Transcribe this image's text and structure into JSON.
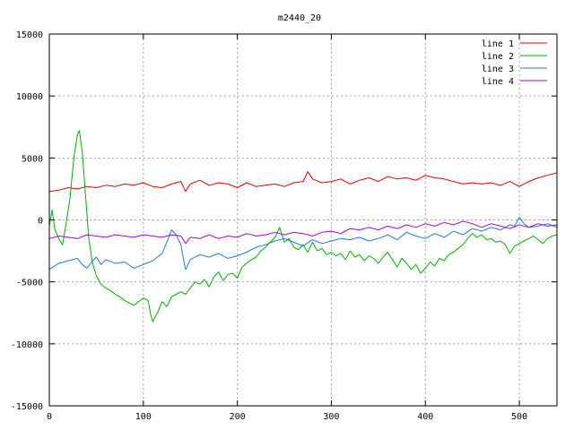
{
  "chart_data": {
    "type": "line",
    "title": "m2440_20",
    "xlabel": "",
    "ylabel": "",
    "xlim": [
      0,
      540
    ],
    "ylim": [
      -15000,
      15000
    ],
    "x_ticks": [
      0,
      100,
      200,
      300,
      400,
      500
    ],
    "y_ticks": [
      -15000,
      -10000,
      -5000,
      0,
      5000,
      10000,
      15000
    ],
    "grid": true,
    "legend_position": "top-right",
    "series": [
      {
        "name": "line 1",
        "color": "#e00000",
        "points": [
          [
            0,
            2300
          ],
          [
            10,
            2400
          ],
          [
            20,
            2600
          ],
          [
            30,
            2500
          ],
          [
            40,
            2700
          ],
          [
            50,
            2600
          ],
          [
            60,
            2800
          ],
          [
            70,
            2700
          ],
          [
            80,
            2900
          ],
          [
            90,
            2800
          ],
          [
            100,
            3000
          ],
          [
            110,
            2700
          ],
          [
            120,
            2600
          ],
          [
            130,
            2900
          ],
          [
            140,
            3100
          ],
          [
            145,
            2300
          ],
          [
            150,
            2900
          ],
          [
            160,
            3200
          ],
          [
            170,
            2800
          ],
          [
            180,
            3000
          ],
          [
            190,
            2900
          ],
          [
            200,
            2600
          ],
          [
            210,
            3000
          ],
          [
            220,
            2700
          ],
          [
            230,
            2800
          ],
          [
            240,
            2900
          ],
          [
            250,
            2700
          ],
          [
            260,
            3000
          ],
          [
            270,
            3100
          ],
          [
            275,
            3900
          ],
          [
            280,
            3300
          ],
          [
            290,
            3000
          ],
          [
            300,
            3100
          ],
          [
            310,
            3300
          ],
          [
            320,
            2900
          ],
          [
            330,
            3200
          ],
          [
            340,
            3400
          ],
          [
            350,
            3100
          ],
          [
            360,
            3500
          ],
          [
            370,
            3300
          ],
          [
            380,
            3400
          ],
          [
            390,
            3200
          ],
          [
            400,
            3600
          ],
          [
            410,
            3400
          ],
          [
            420,
            3300
          ],
          [
            430,
            3100
          ],
          [
            440,
            2900
          ],
          [
            450,
            3000
          ],
          [
            460,
            2900
          ],
          [
            470,
            3000
          ],
          [
            480,
            2800
          ],
          [
            490,
            3100
          ],
          [
            500,
            2700
          ],
          [
            510,
            3100
          ],
          [
            520,
            3400
          ],
          [
            530,
            3600
          ],
          [
            540,
            3800
          ]
        ]
      },
      {
        "name": "line 2",
        "color": "#00b000",
        "points": [
          [
            0,
            -500
          ],
          [
            3,
            800
          ],
          [
            6,
            -800
          ],
          [
            10,
            -1500
          ],
          [
            14,
            -2000
          ],
          [
            18,
            -200
          ],
          [
            22,
            1800
          ],
          [
            26,
            5000
          ],
          [
            30,
            6900
          ],
          [
            32,
            7200
          ],
          [
            35,
            5500
          ],
          [
            38,
            2500
          ],
          [
            42,
            -1500
          ],
          [
            46,
            -3500
          ],
          [
            50,
            -4500
          ],
          [
            55,
            -5200
          ],
          [
            60,
            -5500
          ],
          [
            65,
            -5700
          ],
          [
            70,
            -6000
          ],
          [
            75,
            -6200
          ],
          [
            80,
            -6500
          ],
          [
            85,
            -6700
          ],
          [
            90,
            -6900
          ],
          [
            95,
            -6600
          ],
          [
            100,
            -6300
          ],
          [
            105,
            -6500
          ],
          [
            108,
            -7700
          ],
          [
            110,
            -8200
          ],
          [
            115,
            -7500
          ],
          [
            120,
            -6600
          ],
          [
            125,
            -7000
          ],
          [
            130,
            -6200
          ],
          [
            135,
            -6000
          ],
          [
            140,
            -5800
          ],
          [
            145,
            -6000
          ],
          [
            150,
            -5500
          ],
          [
            155,
            -5000
          ],
          [
            160,
            -5200
          ],
          [
            165,
            -4800
          ],
          [
            170,
            -5400
          ],
          [
            175,
            -4600
          ],
          [
            180,
            -4200
          ],
          [
            185,
            -4900
          ],
          [
            190,
            -4400
          ],
          [
            195,
            -4300
          ],
          [
            200,
            -4700
          ],
          [
            205,
            -3800
          ],
          [
            210,
            -3500
          ],
          [
            215,
            -3200
          ],
          [
            220,
            -3000
          ],
          [
            225,
            -2500
          ],
          [
            230,
            -2200
          ],
          [
            235,
            -1800
          ],
          [
            240,
            -1400
          ],
          [
            245,
            -600
          ],
          [
            250,
            -1800
          ],
          [
            255,
            -1500
          ],
          [
            260,
            -2200
          ],
          [
            265,
            -2400
          ],
          [
            270,
            -2000
          ],
          [
            275,
            -2600
          ],
          [
            280,
            -1800
          ],
          [
            285,
            -2500
          ],
          [
            290,
            -2300
          ],
          [
            295,
            -2800
          ],
          [
            300,
            -2600
          ],
          [
            305,
            -2900
          ],
          [
            310,
            -2700
          ],
          [
            315,
            -3200
          ],
          [
            320,
            -2500
          ],
          [
            325,
            -3000
          ],
          [
            330,
            -2800
          ],
          [
            335,
            -3300
          ],
          [
            340,
            -2900
          ],
          [
            345,
            -3100
          ],
          [
            350,
            -3500
          ],
          [
            355,
            -3000
          ],
          [
            360,
            -2600
          ],
          [
            365,
            -3200
          ],
          [
            370,
            -3800
          ],
          [
            375,
            -3100
          ],
          [
            380,
            -3500
          ],
          [
            385,
            -4000
          ],
          [
            390,
            -3600
          ],
          [
            395,
            -4300
          ],
          [
            400,
            -3900
          ],
          [
            405,
            -3400
          ],
          [
            410,
            -3700
          ],
          [
            415,
            -3100
          ],
          [
            420,
            -3300
          ],
          [
            425,
            -2800
          ],
          [
            430,
            -2600
          ],
          [
            435,
            -2300
          ],
          [
            440,
            -2000
          ],
          [
            445,
            -1500
          ],
          [
            450,
            -1100
          ],
          [
            455,
            -1400
          ],
          [
            460,
            -1200
          ],
          [
            465,
            -1600
          ],
          [
            470,
            -1500
          ],
          [
            475,
            -1800
          ],
          [
            480,
            -1700
          ],
          [
            485,
            -2000
          ],
          [
            490,
            -2700
          ],
          [
            495,
            -2100
          ],
          [
            500,
            -1900
          ],
          [
            505,
            -1700
          ],
          [
            510,
            -1500
          ],
          [
            515,
            -1300
          ],
          [
            520,
            -1600
          ],
          [
            525,
            -1900
          ],
          [
            530,
            -1500
          ],
          [
            535,
            -1300
          ],
          [
            540,
            -1200
          ]
        ]
      },
      {
        "name": "line 3",
        "color": "#1e7bd6",
        "points": [
          [
            0,
            -4000
          ],
          [
            10,
            -3500
          ],
          [
            20,
            -3300
          ],
          [
            30,
            -3100
          ],
          [
            35,
            -3600
          ],
          [
            40,
            -3900
          ],
          [
            45,
            -3400
          ],
          [
            50,
            -3000
          ],
          [
            55,
            -3600
          ],
          [
            60,
            -3200
          ],
          [
            70,
            -3500
          ],
          [
            80,
            -3400
          ],
          [
            90,
            -3900
          ],
          [
            100,
            -3600
          ],
          [
            110,
            -3300
          ],
          [
            120,
            -2700
          ],
          [
            125,
            -1800
          ],
          [
            130,
            -800
          ],
          [
            135,
            -1200
          ],
          [
            140,
            -2000
          ],
          [
            143,
            -3300
          ],
          [
            145,
            -4000
          ],
          [
            150,
            -3200
          ],
          [
            160,
            -2800
          ],
          [
            170,
            -3000
          ],
          [
            180,
            -2700
          ],
          [
            190,
            -3100
          ],
          [
            200,
            -2900
          ],
          [
            210,
            -2600
          ],
          [
            220,
            -2200
          ],
          [
            230,
            -2000
          ],
          [
            240,
            -1700
          ],
          [
            250,
            -1500
          ],
          [
            260,
            -1800
          ],
          [
            270,
            -2100
          ],
          [
            280,
            -1600
          ],
          [
            290,
            -1900
          ],
          [
            300,
            -1700
          ],
          [
            310,
            -1500
          ],
          [
            320,
            -1600
          ],
          [
            330,
            -1400
          ],
          [
            340,
            -1700
          ],
          [
            350,
            -1500
          ],
          [
            360,
            -1200
          ],
          [
            370,
            -1600
          ],
          [
            380,
            -1000
          ],
          [
            390,
            -1300
          ],
          [
            400,
            -1500
          ],
          [
            410,
            -1100
          ],
          [
            420,
            -1400
          ],
          [
            430,
            -900
          ],
          [
            440,
            -1200
          ],
          [
            450,
            -700
          ],
          [
            460,
            -900
          ],
          [
            470,
            -600
          ],
          [
            480,
            -800
          ],
          [
            490,
            -400
          ],
          [
            495,
            -500
          ],
          [
            500,
            200
          ],
          [
            505,
            -300
          ],
          [
            510,
            -600
          ],
          [
            520,
            -500
          ],
          [
            530,
            -300
          ],
          [
            540,
            -600
          ]
        ]
      },
      {
        "name": "line 4",
        "color": "#a800d6",
        "points": [
          [
            0,
            -1500
          ],
          [
            10,
            -1300
          ],
          [
            20,
            -1400
          ],
          [
            30,
            -1500
          ],
          [
            40,
            -1200
          ],
          [
            50,
            -1300
          ],
          [
            60,
            -1400
          ],
          [
            70,
            -1200
          ],
          [
            80,
            -1300
          ],
          [
            90,
            -1400
          ],
          [
            100,
            -1200
          ],
          [
            110,
            -1300
          ],
          [
            120,
            -1400
          ],
          [
            130,
            -1200
          ],
          [
            140,
            -1300
          ],
          [
            145,
            -1900
          ],
          [
            150,
            -1400
          ],
          [
            160,
            -1500
          ],
          [
            170,
            -1200
          ],
          [
            180,
            -1500
          ],
          [
            190,
            -1300
          ],
          [
            200,
            -1400
          ],
          [
            210,
            -1100
          ],
          [
            220,
            -1300
          ],
          [
            230,
            -1200
          ],
          [
            240,
            -1000
          ],
          [
            250,
            -1200
          ],
          [
            260,
            -1000
          ],
          [
            270,
            -1100
          ],
          [
            280,
            -1300
          ],
          [
            290,
            -1000
          ],
          [
            300,
            -900
          ],
          [
            310,
            -1100
          ],
          [
            320,
            -700
          ],
          [
            330,
            -800
          ],
          [
            340,
            -600
          ],
          [
            350,
            -800
          ],
          [
            360,
            -500
          ],
          [
            370,
            -700
          ],
          [
            380,
            -400
          ],
          [
            390,
            -600
          ],
          [
            400,
            -300
          ],
          [
            410,
            -500
          ],
          [
            420,
            -200
          ],
          [
            430,
            -400
          ],
          [
            440,
            -100
          ],
          [
            450,
            -300
          ],
          [
            460,
            -600
          ],
          [
            470,
            -300
          ],
          [
            480,
            -500
          ],
          [
            490,
            -700
          ],
          [
            500,
            -400
          ],
          [
            510,
            -600
          ],
          [
            520,
            -300
          ],
          [
            530,
            -500
          ],
          [
            540,
            -400
          ]
        ]
      }
    ]
  }
}
